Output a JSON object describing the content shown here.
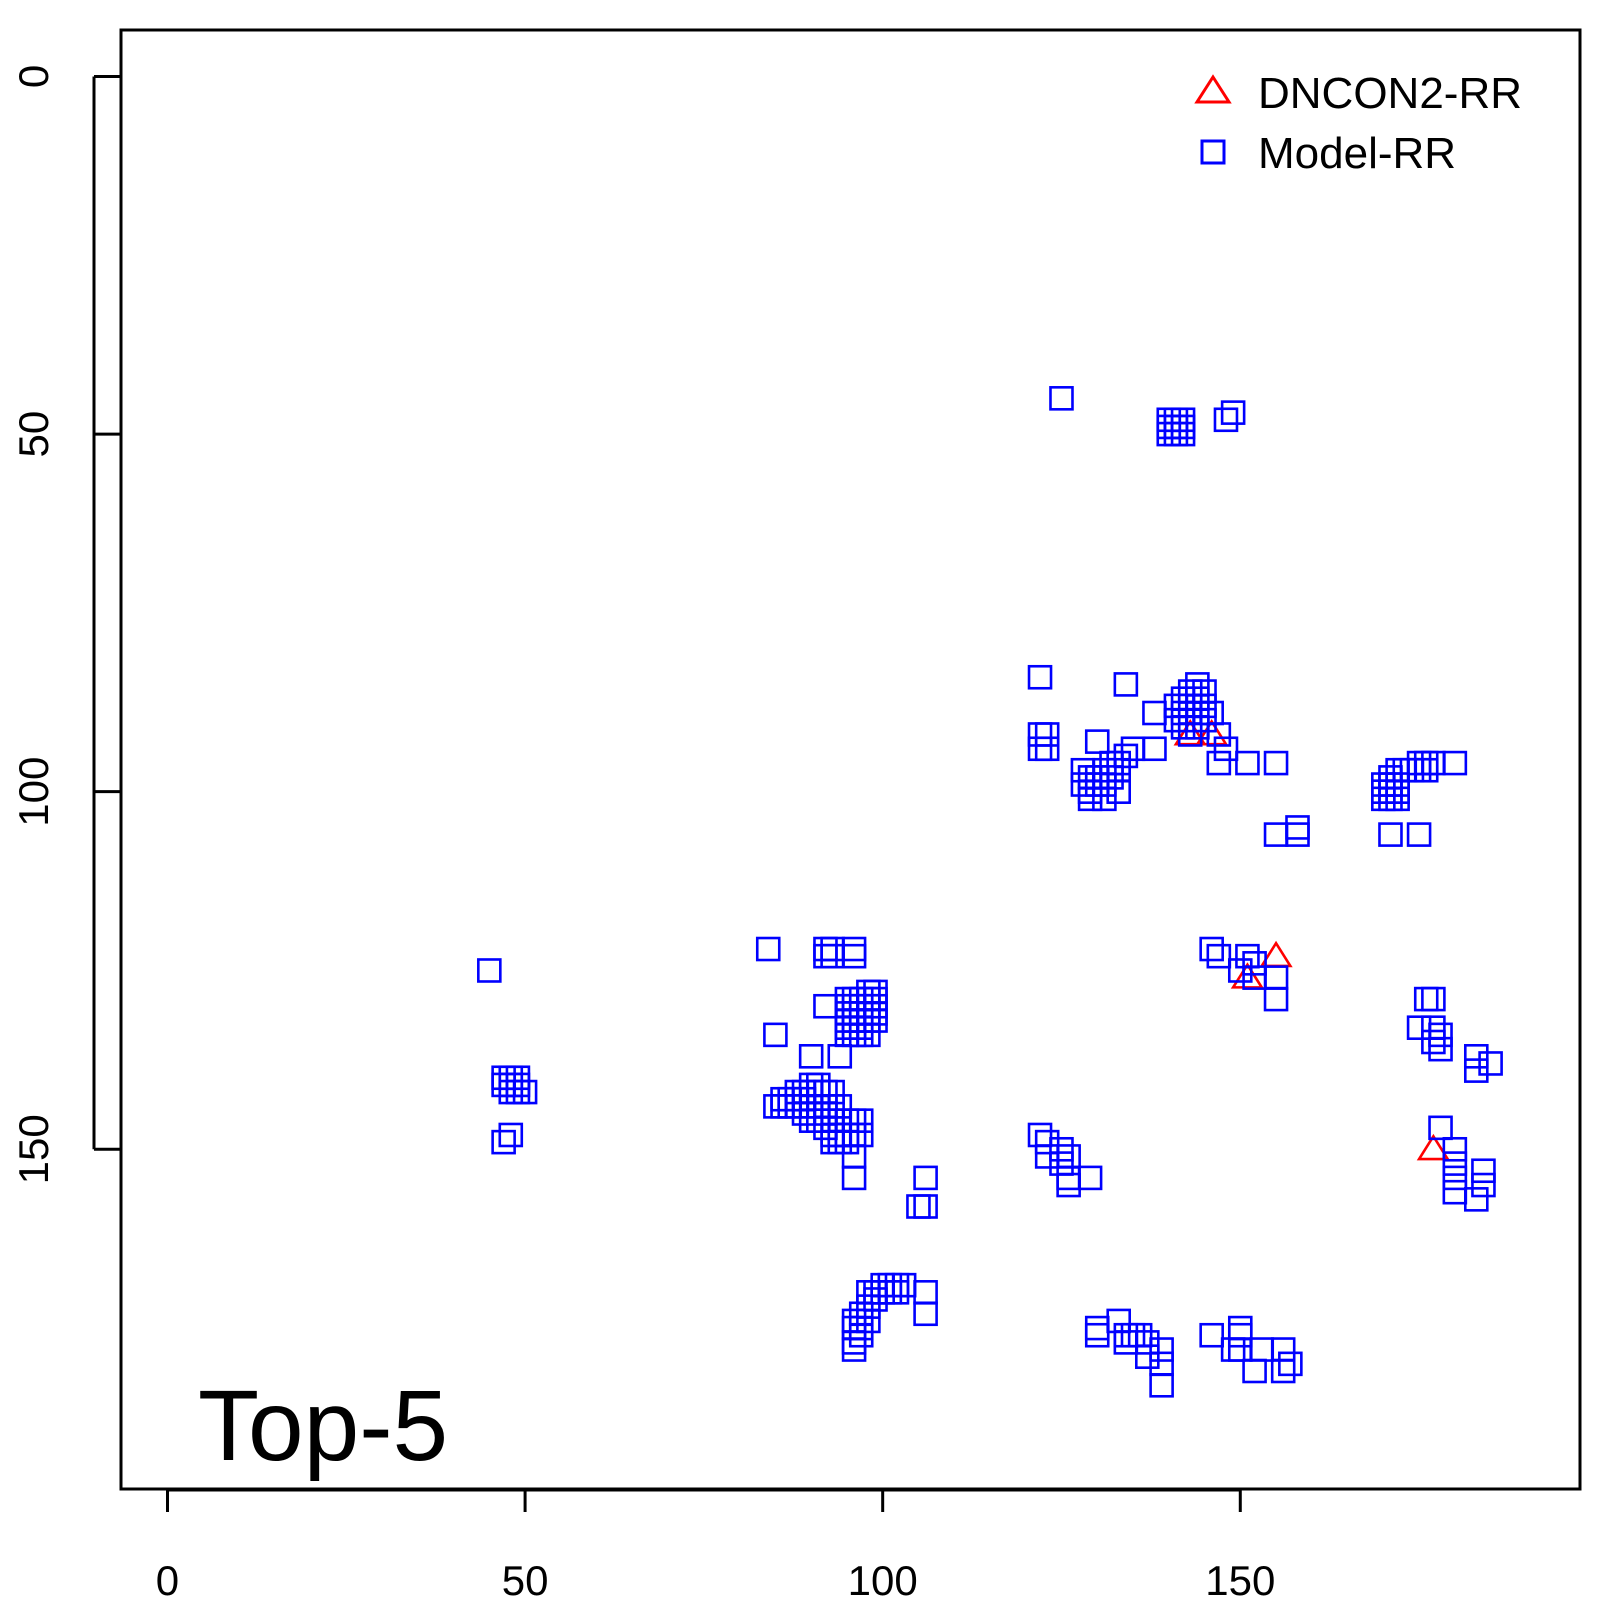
{
  "chart_data": {
    "type": "scatter",
    "title": "",
    "xlabel": "",
    "ylabel": "",
    "xlim": [
      -6.5,
      197.5
    ],
    "ylim": [
      -6.5,
      197.5
    ],
    "y_reversed": true,
    "grid": false,
    "legend_position": "top-right",
    "annotation": "Top-5",
    "x_ticks": [
      0,
      50,
      100,
      150
    ],
    "y_ticks": [
      0,
      50,
      100,
      150
    ],
    "colors": {
      "dncon2": "#ff0000",
      "model": "#0000ff"
    },
    "series": [
      {
        "name": "DNCON2-RR",
        "marker": "triangle",
        "color": "#ff0000",
        "points": [
          [
            143,
            92
          ],
          [
            146,
            92
          ],
          [
            151,
            126
          ],
          [
            155,
            123
          ],
          [
            177,
            150
          ]
        ]
      },
      {
        "name": "Model-RR",
        "marker": "square",
        "color": "#0000ff",
        "points": [
          [
            125,
            45
          ],
          [
            140,
            48
          ],
          [
            141,
            48
          ],
          [
            142,
            48
          ],
          [
            140,
            49
          ],
          [
            141,
            49
          ],
          [
            142,
            49
          ],
          [
            140,
            50
          ],
          [
            141,
            50
          ],
          [
            142,
            50
          ],
          [
            148,
            48
          ],
          [
            149,
            47
          ],
          [
            122,
            84
          ],
          [
            134,
            85
          ],
          [
            122,
            92
          ],
          [
            123,
            92
          ],
          [
            122,
            94
          ],
          [
            123,
            94
          ],
          [
            130,
            93
          ],
          [
            138,
            89
          ],
          [
            141,
            88
          ],
          [
            142,
            87
          ],
          [
            143,
            86
          ],
          [
            144,
            85
          ],
          [
            141,
            90
          ],
          [
            142,
            89
          ],
          [
            143,
            88
          ],
          [
            144,
            87
          ],
          [
            145,
            86
          ],
          [
            142,
            91
          ],
          [
            143,
            90
          ],
          [
            144,
            89
          ],
          [
            145,
            88
          ],
          [
            143,
            92
          ],
          [
            144,
            91
          ],
          [
            145,
            90
          ],
          [
            146,
            89
          ],
          [
            147,
            92
          ],
          [
            148,
            94
          ],
          [
            147,
            96
          ],
          [
            151,
            96
          ],
          [
            155,
            96
          ],
          [
            128,
            97
          ],
          [
            129,
            98
          ],
          [
            130,
            98
          ],
          [
            131,
            97
          ],
          [
            132,
            96
          ],
          [
            133,
            96
          ],
          [
            134,
            95
          ],
          [
            135,
            94
          ],
          [
            138,
            94
          ],
          [
            128,
            99
          ],
          [
            129,
            100
          ],
          [
            130,
            99
          ],
          [
            131,
            99
          ],
          [
            132,
            98
          ],
          [
            133,
            97
          ],
          [
            129,
            101
          ],
          [
            131,
            101
          ],
          [
            133,
            100
          ],
          [
            158,
            105
          ],
          [
            158,
            106
          ],
          [
            155,
            106
          ],
          [
            170,
            99
          ],
          [
            171,
            99
          ],
          [
            172,
            99
          ],
          [
            170,
            100
          ],
          [
            171,
            100
          ],
          [
            172,
            100
          ],
          [
            170,
            101
          ],
          [
            171,
            101
          ],
          [
            172,
            101
          ],
          [
            171,
            98
          ],
          [
            172,
            97
          ],
          [
            173,
            97
          ],
          [
            174,
            97
          ],
          [
            175,
            96
          ],
          [
            176,
            96
          ],
          [
            177,
            96
          ],
          [
            175,
            97
          ],
          [
            176,
            97
          ],
          [
            180,
            96
          ],
          [
            171,
            106
          ],
          [
            175,
            106
          ],
          [
            45,
            125
          ],
          [
            84,
            122
          ],
          [
            92,
            122
          ],
          [
            93,
            122
          ],
          [
            96,
            122
          ],
          [
            92,
            123
          ],
          [
            93,
            123
          ],
          [
            96,
            123
          ],
          [
            85,
            134
          ],
          [
            92,
            130
          ],
          [
            95,
            129
          ],
          [
            96,
            129
          ],
          [
            97,
            129
          ],
          [
            98,
            128
          ],
          [
            99,
            128
          ],
          [
            95,
            130
          ],
          [
            96,
            130
          ],
          [
            97,
            130
          ],
          [
            98,
            129
          ],
          [
            99,
            129
          ],
          [
            95,
            131
          ],
          [
            96,
            131
          ],
          [
            97,
            131
          ],
          [
            98,
            130
          ],
          [
            99,
            130
          ],
          [
            95,
            132
          ],
          [
            96,
            132
          ],
          [
            97,
            132
          ],
          [
            98,
            131
          ],
          [
            99,
            131
          ],
          [
            95,
            133
          ],
          [
            96,
            133
          ],
          [
            97,
            133
          ],
          [
            98,
            132
          ],
          [
            99,
            132
          ],
          [
            95,
            134
          ],
          [
            96,
            134
          ],
          [
            97,
            134
          ],
          [
            98,
            134
          ],
          [
            90,
            137
          ],
          [
            94,
            137
          ],
          [
            146,
            122
          ],
          [
            147,
            123
          ],
          [
            151,
            123
          ],
          [
            150,
            125
          ],
          [
            152,
            124
          ],
          [
            155,
            126
          ],
          [
            155,
            129
          ],
          [
            152,
            126
          ],
          [
            176,
            129
          ],
          [
            177,
            129
          ],
          [
            175,
            133
          ],
          [
            177,
            133
          ],
          [
            178,
            134
          ],
          [
            177,
            135
          ],
          [
            178,
            136
          ],
          [
            183,
            137
          ],
          [
            185,
            138
          ],
          [
            183,
            139
          ],
          [
            47,
            140
          ],
          [
            48,
            140
          ],
          [
            49,
            140
          ],
          [
            47,
            141
          ],
          [
            48,
            141
          ],
          [
            49,
            141
          ],
          [
            48,
            142
          ],
          [
            49,
            142
          ],
          [
            50,
            142
          ],
          [
            47,
            149
          ],
          [
            48,
            148
          ],
          [
            85,
            144
          ],
          [
            86,
            144
          ],
          [
            87,
            144
          ],
          [
            88,
            144
          ],
          [
            86,
            143
          ],
          [
            87,
            143
          ],
          [
            88,
            143
          ],
          [
            89,
            142
          ],
          [
            88,
            142
          ],
          [
            89,
            143
          ],
          [
            90,
            141
          ],
          [
            91,
            141
          ],
          [
            90,
            142
          ],
          [
            91,
            142
          ],
          [
            92,
            142
          ],
          [
            93,
            142
          ],
          [
            89,
            145
          ],
          [
            90,
            144
          ],
          [
            91,
            144
          ],
          [
            92,
            144
          ],
          [
            93,
            144
          ],
          [
            94,
            144
          ],
          [
            90,
            146
          ],
          [
            91,
            146
          ],
          [
            92,
            145
          ],
          [
            93,
            146
          ],
          [
            94,
            146
          ],
          [
            95,
            146
          ],
          [
            96,
            146
          ],
          [
            97,
            146
          ],
          [
            92,
            147
          ],
          [
            93,
            148
          ],
          [
            94,
            148
          ],
          [
            95,
            148
          ],
          [
            96,
            148
          ],
          [
            97,
            148
          ],
          [
            93,
            149
          ],
          [
            94,
            149
          ],
          [
            95,
            149
          ],
          [
            96,
            151
          ],
          [
            96,
            154
          ],
          [
            122,
            148
          ],
          [
            123,
            149
          ],
          [
            123,
            151
          ],
          [
            125,
            150
          ],
          [
            126,
            151
          ],
          [
            125,
            152
          ],
          [
            126,
            154
          ],
          [
            126,
            155
          ],
          [
            129,
            154
          ],
          [
            178,
            147
          ],
          [
            180,
            150
          ],
          [
            180,
            152
          ],
          [
            180,
            154
          ],
          [
            180,
            156
          ],
          [
            184,
            153
          ],
          [
            184,
            155
          ],
          [
            183,
            157
          ],
          [
            106,
            154
          ],
          [
            105,
            158
          ],
          [
            106,
            158
          ],
          [
            96,
            174
          ],
          [
            97,
            173
          ],
          [
            98,
            172
          ],
          [
            99,
            170
          ],
          [
            100,
            169
          ],
          [
            101,
            169
          ],
          [
            102,
            169
          ],
          [
            103,
            169
          ],
          [
            98,
            170
          ],
          [
            99,
            171
          ],
          [
            100,
            170
          ],
          [
            101,
            170
          ],
          [
            102,
            170
          ],
          [
            96,
            175
          ],
          [
            97,
            175
          ],
          [
            98,
            174
          ],
          [
            96,
            177
          ],
          [
            97,
            176
          ],
          [
            96,
            178
          ],
          [
            106,
            170
          ],
          [
            106,
            173
          ],
          [
            130,
            175
          ],
          [
            130,
            176
          ],
          [
            133,
            174
          ],
          [
            134,
            176
          ],
          [
            135,
            176
          ],
          [
            136,
            176
          ],
          [
            134,
            177
          ],
          [
            137,
            177
          ],
          [
            137,
            179
          ],
          [
            139,
            178
          ],
          [
            139,
            180
          ],
          [
            139,
            183
          ],
          [
            146,
            176
          ],
          [
            150,
            175
          ],
          [
            150,
            176
          ],
          [
            149,
            178
          ],
          [
            150,
            178
          ],
          [
            153,
            178
          ],
          [
            152,
            181
          ],
          [
            156,
            178
          ],
          [
            156,
            181
          ],
          [
            157,
            180
          ]
        ]
      }
    ]
  }
}
